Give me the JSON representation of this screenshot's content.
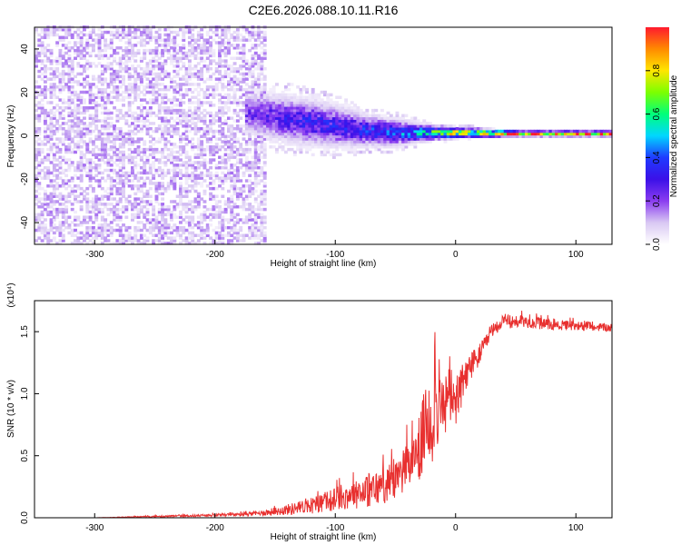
{
  "title": "C2E6.2026.088.10.11.R16",
  "colors": {
    "snr_line": "#e8302f",
    "axis": "#000000",
    "colormap": [
      "#ffffff",
      "#d9c8f3",
      "#8a3cf0",
      "#3b10e8",
      "#1f3bff",
      "#00d7ff",
      "#00ff7a",
      "#7cff00",
      "#ffe600",
      "#ff8a00",
      "#ff1a2e"
    ]
  },
  "chart_data": [
    {
      "type": "heatmap",
      "title": "C2E6.2026.088.10.11.R16",
      "xlabel": "Height of straight line (km)",
      "ylabel": "Frequency (Hz)",
      "xlim": [
        -350,
        130
      ],
      "ylim": [
        -50,
        50
      ],
      "xticks": [
        "-300",
        "-200",
        "-100",
        "0",
        "100"
      ],
      "yticks": [
        "-40",
        "-20",
        "0",
        "20",
        "40"
      ],
      "colorbar": {
        "label": "Normalized spectral amplitude",
        "range": [
          0.0,
          1.0
        ],
        "ticks": [
          "0.0",
          "0.2",
          "0.4",
          "0.6",
          "0.8"
        ]
      },
      "signal_track": [
        {
          "x": -175,
          "center": 10,
          "spread": 8,
          "amplitude": 0.25
        },
        {
          "x": -150,
          "center": 8,
          "spread": 9,
          "amplitude": 0.3
        },
        {
          "x": -125,
          "center": 6,
          "spread": 9,
          "amplitude": 0.35
        },
        {
          "x": -100,
          "center": 4,
          "spread": 8,
          "amplitude": 0.35
        },
        {
          "x": -75,
          "center": 2,
          "spread": 6,
          "amplitude": 0.4
        },
        {
          "x": -50,
          "center": 1,
          "spread": 5,
          "amplitude": 0.45
        },
        {
          "x": -25,
          "center": 1,
          "spread": 3,
          "amplitude": 0.6
        },
        {
          "x": 0,
          "center": 1,
          "spread": 2,
          "amplitude": 0.9
        },
        {
          "x": 50,
          "center": 0.5,
          "spread": 1,
          "amplitude": 1.0
        },
        {
          "x": 130,
          "center": 0.5,
          "spread": 1,
          "amplitude": 1.0
        }
      ],
      "noise_region": {
        "x_from": -350,
        "x_to": -160,
        "amplitude": 0.15
      }
    },
    {
      "type": "line",
      "xlabel": "Height of straight line (km)",
      "ylabel": "SNR (10 * v/v)",
      "y_multiplier": "(x10⁴)",
      "xlim": [
        -350,
        130
      ],
      "ylim": [
        0,
        1.75
      ],
      "xticks": [
        "-300",
        "-200",
        "-100",
        "0",
        "100"
      ],
      "yticks": [
        "0.0",
        "0.5",
        "1.0",
        "1.5"
      ],
      "series": [
        {
          "x": [
            -350,
            -300,
            -250,
            -200,
            -170,
            -150,
            -130,
            -110,
            -90,
            -70,
            -50,
            -40,
            -30,
            -25,
            -20,
            -15,
            -10,
            -5,
            0,
            5,
            10,
            15,
            20,
            25,
            30,
            35,
            40,
            60,
            80,
            100,
            130
          ],
          "y": [
            0.0,
            0.0,
            0.01,
            0.02,
            0.03,
            0.05,
            0.08,
            0.12,
            0.18,
            0.22,
            0.3,
            0.42,
            0.55,
            0.75,
            0.8,
            0.95,
            0.85,
            1.0,
            0.95,
            1.05,
            1.15,
            1.25,
            1.32,
            1.4,
            1.5,
            1.55,
            1.58,
            1.58,
            1.55,
            1.55,
            1.53
          ],
          "noise": [
            0.0,
            0.0,
            0.01,
            0.02,
            0.03,
            0.06,
            0.1,
            0.15,
            0.2,
            0.25,
            0.3,
            0.35,
            0.5,
            0.6,
            0.7,
            0.7,
            0.5,
            0.45,
            0.4,
            0.3,
            0.25,
            0.2,
            0.15,
            0.12,
            0.1,
            0.1,
            0.1,
            0.09,
            0.08,
            0.07,
            0.06
          ]
        }
      ]
    }
  ]
}
